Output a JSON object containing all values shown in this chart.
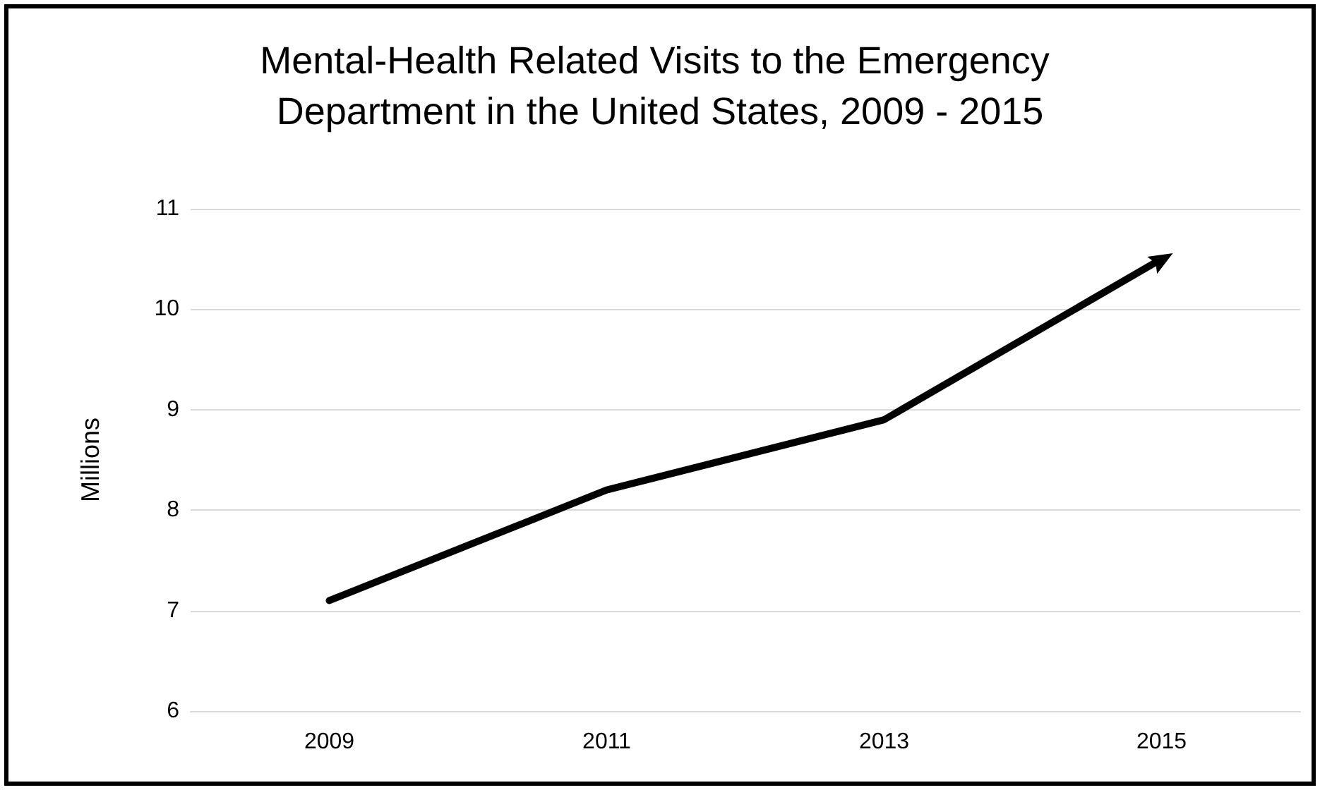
{
  "chart_data": {
    "type": "line",
    "title": "Mental-Health Related Visits to the Emergency Department in the United States, 2009 - 2015",
    "ylabel": "Millions",
    "categories": [
      "2009",
      "2011",
      "2013",
      "2015"
    ],
    "series": [
      {
        "color": "#000000",
        "values": [
          7.1,
          8.2,
          8.9,
          10.5
        ]
      }
    ],
    "ylim": [
      6,
      11
    ],
    "yticks": [
      6,
      7,
      8,
      9,
      10,
      11
    ],
    "grid": "y",
    "marker": "none",
    "line_style": "solid"
  }
}
